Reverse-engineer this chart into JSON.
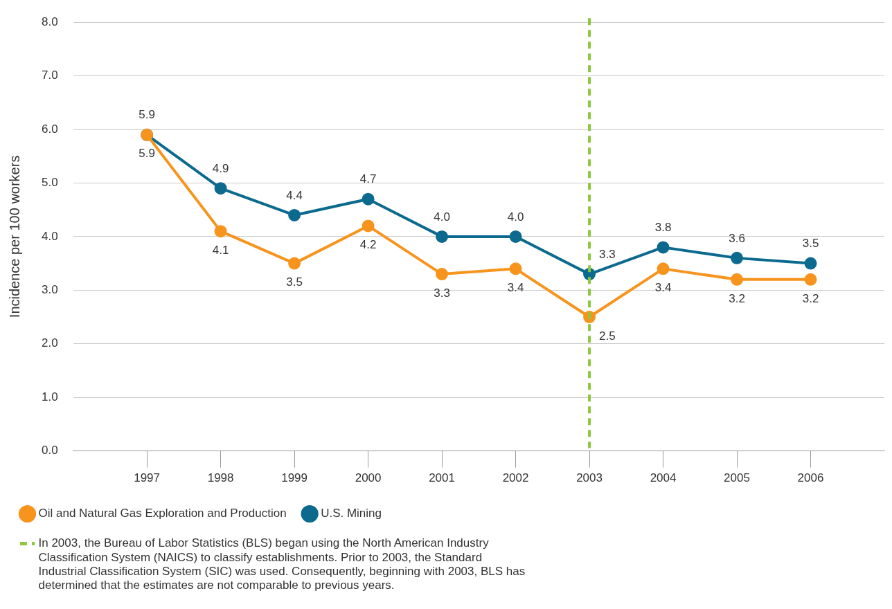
{
  "chart_data": {
    "type": "line",
    "ylabel": "Incidence per 100 workers",
    "x": [
      1997,
      1998,
      1999,
      2000,
      2001,
      2002,
      2003,
      2004,
      2005,
      2006
    ],
    "xlim": [
      1996,
      2007
    ],
    "xticks": [
      1997,
      1998,
      1999,
      2000,
      2001,
      2002,
      2003,
      2004,
      2005,
      2006
    ],
    "ylim": [
      0,
      8
    ],
    "yticks": [
      {
        "value": 0,
        "label": "0.0"
      },
      {
        "value": 1,
        "label": "1.0"
      },
      {
        "value": 2,
        "label": "2.0"
      },
      {
        "value": 3,
        "label": "3.0"
      },
      {
        "value": 4,
        "label": "4.0"
      },
      {
        "value": 5,
        "label": "5.0"
      },
      {
        "value": 6,
        "label": "6.0"
      },
      {
        "value": 7,
        "label": "7.0"
      },
      {
        "value": 8,
        "label": "8.0"
      }
    ],
    "series": [
      {
        "name": "Oil and Natural Gas Exploration and Production",
        "color": "#f7941d",
        "values": [
          5.9,
          4.1,
          3.5,
          4.2,
          3.3,
          3.4,
          2.5,
          3.4,
          3.2,
          3.2
        ],
        "value_labels": [
          "5.9",
          "4.1",
          "3.5",
          "4.2",
          "3.3",
          "3.4",
          "2.5",
          "3.4",
          "3.2",
          "3.2"
        ]
      },
      {
        "name": "U.S. Mining",
        "color": "#0b6a8e",
        "values": [
          5.9,
          4.9,
          4.4,
          4.7,
          4.0,
          4.0,
          3.3,
          3.8,
          3.6,
          3.5
        ],
        "value_labels": [
          "5.9",
          "4.9",
          "4.4",
          "4.7",
          "4.0",
          "4.0",
          "3.3",
          "3.8",
          "3.6",
          "3.5"
        ]
      }
    ],
    "ref_lines": [
      {
        "axis": "x",
        "value": 2003,
        "label": "In 2003, the Bureau of Labor Statistics (BLS) began using the North American Industry Classification System (NAICS) to classify establishments. Prior to 2003, the Standard Industrial Classification System (SIC) was used. Consequently, beginning with 2003, BLS has determined that the estimates are not comparable to previous years.",
        "color": "#8dc63f",
        "line_style": "dashed"
      }
    ],
    "grid": "y",
    "legend": "bottom",
    "marker": "circle",
    "line_style": "solid"
  }
}
